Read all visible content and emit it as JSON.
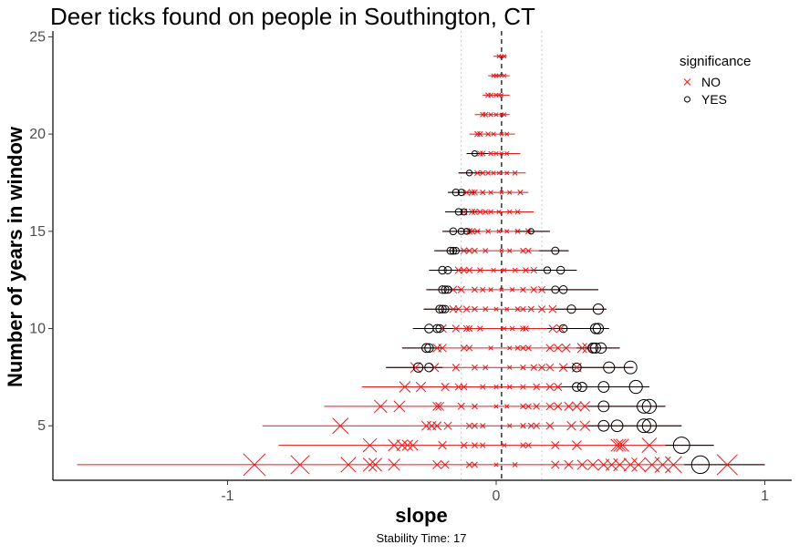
{
  "chart_data": {
    "type": "scatter",
    "title": "Deer ticks found on people in Southington, CT",
    "xlabel": "slope",
    "ylabel": "Number of years in window",
    "caption": "Stability Time: 17",
    "xlim": [
      -1.65,
      1.1
    ],
    "ylim": [
      2.2,
      25.3
    ],
    "xticks": [
      -1,
      0,
      1
    ],
    "xtick_labels": [
      "-1",
      "0",
      "1"
    ],
    "yticks": [
      5,
      10,
      15,
      20,
      25
    ],
    "ytick_labels": [
      "5",
      "10",
      "15",
      "20",
      "25"
    ],
    "grid": false,
    "reference_lines": {
      "zero": 0.02,
      "dotted": [
        -0.13,
        0.17
      ]
    },
    "legend": {
      "title": "significance",
      "position": "top-right",
      "entries": [
        {
          "label": "NO",
          "shape": "cross",
          "color": "#e41a1c"
        },
        {
          "label": "YES",
          "shape": "circle",
          "color": "#000000"
        }
      ]
    },
    "colors": {
      "NO": "#e41a1c",
      "YES": "#000000",
      "axis": "#000000"
    },
    "rows": [
      {
        "y": 3,
        "error_range": [
          -1.56,
          1.0
        ],
        "no": [
          -0.9,
          -0.73,
          -0.55,
          -0.47,
          -0.45,
          -0.38,
          -0.22,
          -0.19,
          -0.1,
          -0.08,
          0.0,
          0.07,
          0.22,
          0.27,
          0.32,
          0.36,
          0.4,
          0.43,
          0.46,
          0.5,
          0.53,
          0.58,
          0.62,
          0.66,
          0.86
        ],
        "yes": [
          0.76
        ]
      },
      {
        "y": 4,
        "error_range": [
          -0.81,
          0.81
        ],
        "no": [
          -0.47,
          -0.38,
          -0.35,
          -0.33,
          -0.31,
          -0.2,
          -0.12,
          -0.08,
          -0.05,
          0.03,
          0.1,
          0.12,
          0.22,
          0.3,
          0.45,
          0.46,
          0.47,
          0.57
        ],
        "yes": [
          0.69
        ]
      },
      {
        "y": 5,
        "error_range": [
          -0.87,
          0.69
        ],
        "no": [
          -0.58,
          -0.26,
          -0.24,
          -0.22,
          -0.18,
          -0.1,
          -0.08,
          -0.05,
          0.05,
          0.1,
          0.13,
          0.15,
          0.2,
          0.28,
          0.33
        ],
        "yes": [
          0.4,
          0.45,
          0.55,
          0.57
        ]
      },
      {
        "y": 6,
        "error_range": [
          -0.64,
          0.63
        ],
        "no": [
          -0.43,
          -0.36,
          -0.22,
          -0.21,
          -0.13,
          -0.08,
          0.0,
          0.04,
          0.1,
          0.12,
          0.15,
          0.2,
          0.23,
          0.27,
          0.3,
          0.33
        ],
        "yes": [
          0.4,
          0.55,
          0.57
        ]
      },
      {
        "y": 7,
        "error_range": [
          -0.5,
          0.57
        ],
        "no": [
          -0.34,
          -0.28,
          -0.19,
          -0.14,
          -0.12,
          -0.05,
          0.0,
          0.05,
          0.1,
          0.15,
          0.2,
          0.23
        ],
        "yes": [
          0.3,
          0.32,
          0.4,
          0.52
        ]
      },
      {
        "y": 8,
        "error_range": [
          -0.41,
          0.51
        ],
        "no": [
          -0.3,
          -0.23,
          -0.15,
          -0.08,
          -0.04,
          0.05,
          0.1,
          0.14,
          0.17,
          0.2,
          0.25,
          0.3
        ],
        "yes": [
          -0.29,
          -0.25,
          0.3,
          0.42,
          0.5
        ]
      },
      {
        "y": 9,
        "error_range": [
          -0.35,
          0.46
        ],
        "no": [
          -0.22,
          -0.2,
          -0.12,
          -0.1,
          -0.02,
          0.05,
          0.08,
          0.1,
          0.12,
          0.2,
          0.23,
          0.26,
          0.32,
          0.34
        ],
        "yes": [
          -0.26,
          -0.25,
          0.36,
          0.37,
          0.39
        ]
      },
      {
        "y": 10,
        "error_range": [
          -0.31,
          0.42
        ],
        "no": [
          -0.2,
          -0.15,
          -0.11,
          -0.1,
          -0.06,
          0.03,
          0.06,
          0.1,
          0.11,
          0.21,
          0.24
        ],
        "yes": [
          -0.25,
          -0.22,
          -0.21,
          0.25,
          0.37,
          0.38
        ]
      },
      {
        "y": 11,
        "error_range": [
          -0.27,
          0.41
        ],
        "no": [
          -0.16,
          -0.14,
          -0.11,
          -0.08,
          -0.04,
          0.0,
          0.04,
          0.08,
          0.1,
          0.13,
          0.17,
          0.21
        ],
        "yes": [
          -0.21,
          -0.2,
          -0.19,
          0.28,
          0.38
        ]
      },
      {
        "y": 12,
        "error_range": [
          -0.26,
          0.38
        ],
        "no": [
          -0.16,
          -0.13,
          -0.08,
          -0.05,
          -0.02,
          0.02,
          0.06,
          0.1,
          0.14,
          0.17
        ],
        "yes": [
          -0.2,
          -0.19,
          -0.18,
          0.22,
          0.25
        ]
      },
      {
        "y": 13,
        "error_range": [
          -0.25,
          0.3
        ],
        "no": [
          -0.14,
          -0.12,
          -0.1,
          -0.06,
          -0.01,
          0.03,
          0.07,
          0.11,
          0.14
        ],
        "yes": [
          -0.2,
          -0.18,
          0.19,
          0.24
        ]
      },
      {
        "y": 14,
        "error_range": [
          -0.23,
          0.27
        ],
        "no": [
          -0.12,
          -0.1,
          -0.08,
          -0.04,
          0.02,
          0.05,
          0.1,
          0.12
        ],
        "yes": [
          -0.17,
          -0.16,
          -0.15,
          0.22
        ]
      },
      {
        "y": 15,
        "error_range": [
          -0.2,
          0.2
        ],
        "no": [
          -0.1,
          -0.09,
          -0.07,
          -0.03,
          0.01,
          0.04,
          0.08,
          0.12
        ],
        "yes": [
          -0.16,
          -0.13,
          -0.11,
          0.13
        ]
      },
      {
        "y": 16,
        "error_range": [
          -0.19,
          0.14
        ],
        "no": [
          -0.12,
          -0.09,
          -0.08,
          -0.06,
          -0.04,
          -0.02,
          0.01,
          0.05,
          0.08
        ],
        "yes": [
          -0.14,
          -0.12
        ]
      },
      {
        "y": 17,
        "error_range": [
          -0.18,
          0.12
        ],
        "no": [
          -0.11,
          -0.09,
          -0.08,
          -0.05,
          -0.02,
          0.02,
          0.05,
          0.09
        ],
        "yes": [
          -0.15,
          -0.13
        ]
      },
      {
        "y": 18,
        "error_range": [
          -0.14,
          0.11
        ],
        "no": [
          -0.07,
          -0.05,
          -0.03,
          -0.01,
          0.01,
          0.04,
          0.07
        ],
        "yes": [
          -0.1
        ]
      },
      {
        "y": 19,
        "error_range": [
          -0.11,
          0.09
        ],
        "no": [
          -0.06,
          -0.05,
          -0.02,
          0.0,
          0.02,
          0.04
        ],
        "yes": [
          -0.08
        ]
      },
      {
        "y": 20,
        "error_range": [
          -0.1,
          0.07
        ],
        "no": [
          -0.07,
          -0.06,
          -0.03,
          -0.01,
          0.02,
          0.04
        ],
        "yes": []
      },
      {
        "y": 21,
        "error_range": [
          -0.08,
          0.05
        ],
        "no": [
          -0.05,
          -0.04,
          -0.02,
          0.0,
          0.02,
          0.03
        ],
        "yes": []
      },
      {
        "y": 22,
        "error_range": [
          -0.05,
          0.05
        ],
        "no": [
          -0.03,
          -0.02,
          0.0,
          0.01,
          0.02
        ],
        "yes": []
      },
      {
        "y": 23,
        "error_range": [
          -0.03,
          0.05
        ],
        "no": [
          -0.01,
          0.0,
          0.01,
          0.03
        ],
        "yes": []
      },
      {
        "y": 24,
        "error_range": [
          -0.01,
          0.04
        ],
        "no": [
          0.01,
          0.02,
          0.03
        ],
        "yes": []
      }
    ]
  }
}
